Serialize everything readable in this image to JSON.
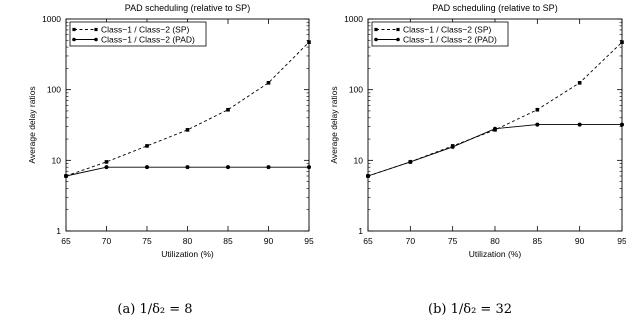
{
  "chart_data": [
    {
      "type": "line",
      "title": "PAD scheduling (relative to SP)",
      "caption": "(a) 1/δ₂ = 8",
      "xlabel": "Utilization (%)",
      "ylabel": "Average delay ratios",
      "x": [
        65,
        70,
        75,
        80,
        85,
        90,
        95
      ],
      "x_ticks": [
        "65",
        "70",
        "75",
        "80",
        "85",
        "90",
        "95"
      ],
      "y_scale": "log",
      "ylim": [
        1,
        1000
      ],
      "y_ticks": [
        "1",
        "10",
        "100",
        "1000"
      ],
      "xlim": [
        65,
        95
      ],
      "grid": false,
      "legend_position": "top-left",
      "series": [
        {
          "name": "Class−1 / Class−2 (SP)",
          "style": "dashed",
          "marker": "square",
          "values": [
            6,
            9.5,
            16,
            27,
            52,
            125,
            470
          ]
        },
        {
          "name": "Class−1 / Class−2 (PAD)",
          "style": "solid",
          "marker": "circle",
          "values": [
            6,
            8,
            8,
            8,
            8,
            8,
            8
          ]
        }
      ]
    },
    {
      "type": "line",
      "title": "PAD scheduling (relative to SP)",
      "caption": "(b) 1/δ₂ = 32",
      "xlabel": "Utilization (%)",
      "ylabel": "Average delay ratios",
      "x": [
        65,
        70,
        75,
        80,
        85,
        90,
        95
      ],
      "x_ticks": [
        "65",
        "70",
        "75",
        "80",
        "85",
        "90",
        "95"
      ],
      "y_scale": "log",
      "ylim": [
        1,
        1000
      ],
      "y_ticks": [
        "1",
        "10",
        "100",
        "1000"
      ],
      "xlim": [
        65,
        95
      ],
      "grid": false,
      "legend_position": "top-left",
      "series": [
        {
          "name": "Class−1 / Class−2 (SP)",
          "style": "dashed",
          "marker": "square",
          "values": [
            6,
            9.5,
            16,
            27,
            52,
            125,
            470
          ]
        },
        {
          "name": "Class−1 / Class−2 (PAD)",
          "style": "solid",
          "marker": "circle",
          "values": [
            6,
            9.5,
            15.5,
            28,
            32,
            32,
            32
          ]
        }
      ]
    }
  ]
}
